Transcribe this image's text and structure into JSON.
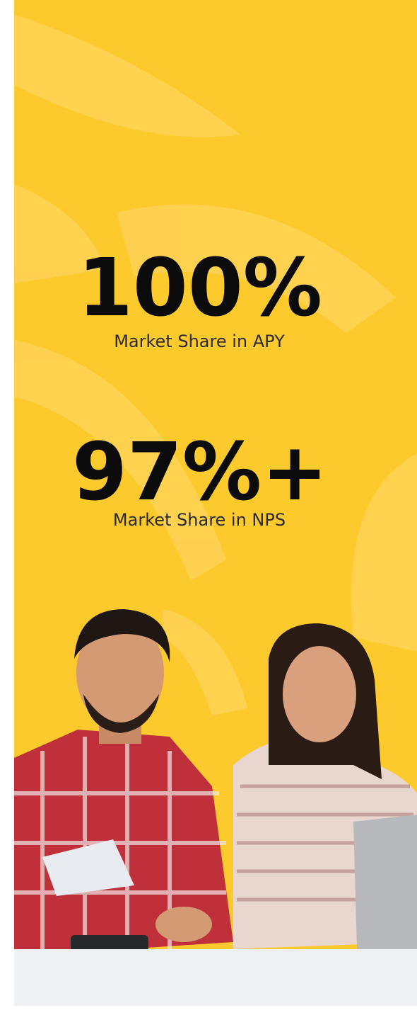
{
  "stats": [
    {
      "value": "100%",
      "label": "Market Share in APY"
    },
    {
      "value": "97%+",
      "label": "Market Share in NPS"
    }
  ]
}
